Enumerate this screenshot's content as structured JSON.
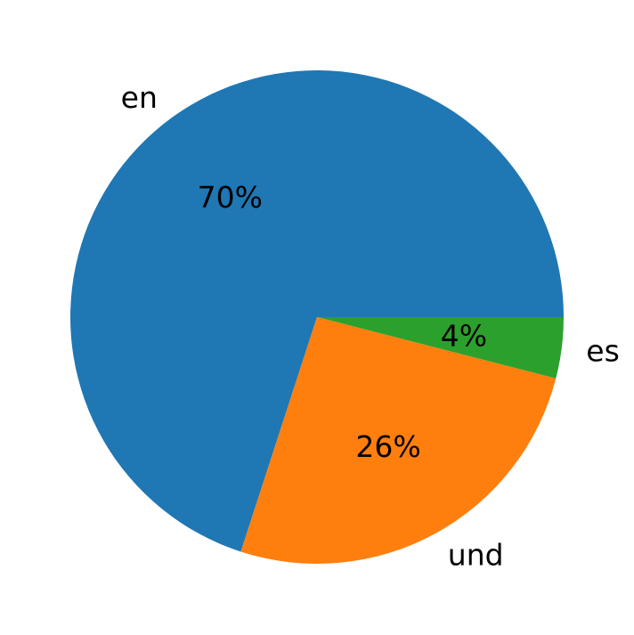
{
  "chart_data": {
    "type": "pie",
    "categories": [
      "en",
      "und",
      "es"
    ],
    "values": [
      70,
      26,
      4
    ],
    "value_labels": [
      "70%",
      "26%",
      "4%"
    ],
    "colors": [
      "#1f77b4",
      "#ff7f0e",
      "#2ca02c"
    ],
    "start_angle_deg": 0,
    "direction": "counterclockwise",
    "title": "",
    "legend": "none"
  }
}
